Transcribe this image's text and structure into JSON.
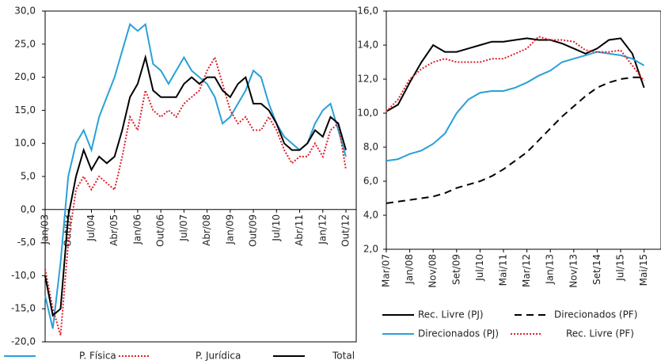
{
  "chart_data": [
    {
      "type": "line",
      "categories": [
        "Jan/03",
        null,
        null,
        "Out/03",
        null,
        null,
        "Jul/04",
        null,
        null,
        "Abr/05",
        null,
        null,
        "Jan/06",
        null,
        null,
        "Out/06",
        null,
        null,
        "Jul/07",
        null,
        null,
        "Abr/08",
        null,
        null,
        "Jan/09",
        null,
        null,
        "Out/09",
        null,
        null,
        "Jul/10",
        null,
        null,
        "Abr/11",
        null,
        null,
        "Jan/12",
        null,
        null,
        "Out/12"
      ],
      "series": [
        {
          "name": "P. Física",
          "color": "#2aa0d8",
          "style": "solid",
          "values": [
            -13,
            -18,
            -8,
            5,
            10,
            12,
            9,
            14,
            17,
            20,
            24,
            28,
            27,
            28,
            22,
            21,
            19,
            21,
            23,
            21,
            20,
            19,
            17,
            13,
            14,
            16,
            18,
            21,
            20,
            16,
            13,
            11,
            10,
            9,
            10,
            13,
            15,
            16,
            12,
            8
          ]
        },
        {
          "name": "P. Jurídica",
          "color": "#e0202a",
          "style": "dotted",
          "values": [
            -9,
            -15,
            -19,
            -5,
            3,
            5,
            3,
            5,
            4,
            3,
            8,
            14,
            12,
            18,
            15,
            14,
            15,
            14,
            16,
            17,
            18,
            21,
            23,
            19,
            15,
            13,
            14,
            12,
            12,
            14,
            12,
            9,
            7,
            8,
            8,
            10,
            8,
            12,
            13,
            6
          ]
        },
        {
          "name": "Total",
          "color": "#000000",
          "style": "solid",
          "values": [
            -10,
            -16,
            -15,
            -1,
            5,
            9,
            6,
            8,
            7,
            8,
            12,
            17,
            19,
            23,
            18,
            17,
            17,
            17,
            19,
            20,
            19,
            20,
            20,
            18,
            17,
            19,
            20,
            16,
            16,
            15,
            13,
            10,
            9,
            9,
            10,
            12,
            11,
            14,
            13,
            9
          ]
        }
      ],
      "ylim": [
        -20,
        30
      ],
      "yticks": [
        {
          "value": -20,
          "label": "-20,0"
        },
        {
          "value": -15,
          "label": "-15,0"
        },
        {
          "value": -10,
          "label": "-10,0"
        },
        {
          "value": -5,
          "label": "-5,0"
        },
        {
          "value": 0,
          "label": "0,0"
        },
        {
          "value": 5,
          "label": "5,0"
        },
        {
          "value": 10,
          "label": "10,0"
        },
        {
          "value": 15,
          "label": "15,0"
        },
        {
          "value": 20,
          "label": "20,0"
        },
        {
          "value": 25,
          "label": "25,0"
        },
        {
          "value": 30,
          "label": "30,0"
        }
      ],
      "grid": false
    },
    {
      "type": "line",
      "categories": [
        "Mar/07",
        null,
        "Jan/08",
        null,
        "Nov/08",
        null,
        "Set/09",
        null,
        "Jul/10",
        null,
        "Mai/11",
        null,
        "Mar/12",
        null,
        "Jan/13",
        null,
        "Nov/13",
        null,
        "Set/14",
        null,
        "Jul/15",
        null,
        "Mai/15"
      ],
      "series": [
        {
          "name": "Rec. Livre (PJ)",
          "color": "#000000",
          "style": "solid",
          "values": [
            10.1,
            10.5,
            11.8,
            13.0,
            14.0,
            13.6,
            13.6,
            13.8,
            14.0,
            14.2,
            14.2,
            14.3,
            14.4,
            14.3,
            14.3,
            14.1,
            13.8,
            13.5,
            13.8,
            14.3,
            14.4,
            13.5,
            11.5
          ]
        },
        {
          "name": "Direcionados (PF)",
          "color": "#000000",
          "style": "dashed",
          "values": [
            4.7,
            4.8,
            4.9,
            5.0,
            5.1,
            5.3,
            5.6,
            5.8,
            6.0,
            6.3,
            6.7,
            7.2,
            7.7,
            8.4,
            9.1,
            9.8,
            10.4,
            11.0,
            11.5,
            11.8,
            12.0,
            12.1,
            12.1
          ]
        },
        {
          "name": "Direcionados (PJ)",
          "color": "#2aa0d8",
          "style": "solid",
          "values": [
            7.2,
            7.3,
            7.6,
            7.8,
            8.2,
            8.8,
            10.0,
            10.8,
            11.2,
            11.3,
            11.3,
            11.5,
            11.8,
            12.2,
            12.5,
            13.0,
            13.2,
            13.4,
            13.6,
            13.5,
            13.4,
            13.2,
            12.8
          ]
        },
        {
          "name": "Rec. Livre (PF)",
          "color": "#e0202a",
          "style": "dotted",
          "values": [
            10.1,
            10.8,
            12.0,
            12.6,
            13.0,
            13.2,
            13.0,
            13.0,
            13.0,
            13.2,
            13.2,
            13.5,
            13.8,
            14.5,
            14.3,
            14.3,
            14.2,
            13.7,
            13.6,
            13.6,
            13.7,
            12.8,
            11.9
          ]
        }
      ],
      "ylim": [
        2,
        16
      ],
      "yticks": [
        {
          "value": 2,
          "label": "2,0"
        },
        {
          "value": 4,
          "label": "4,0"
        },
        {
          "value": 6,
          "label": "6,0"
        },
        {
          "value": 8,
          "label": "8,0"
        },
        {
          "value": 10,
          "label": "10,0"
        },
        {
          "value": 12,
          "label": "12,0"
        },
        {
          "value": 14,
          "label": "14,0"
        },
        {
          "value": 16,
          "label": "16,0"
        }
      ],
      "grid": false
    }
  ]
}
